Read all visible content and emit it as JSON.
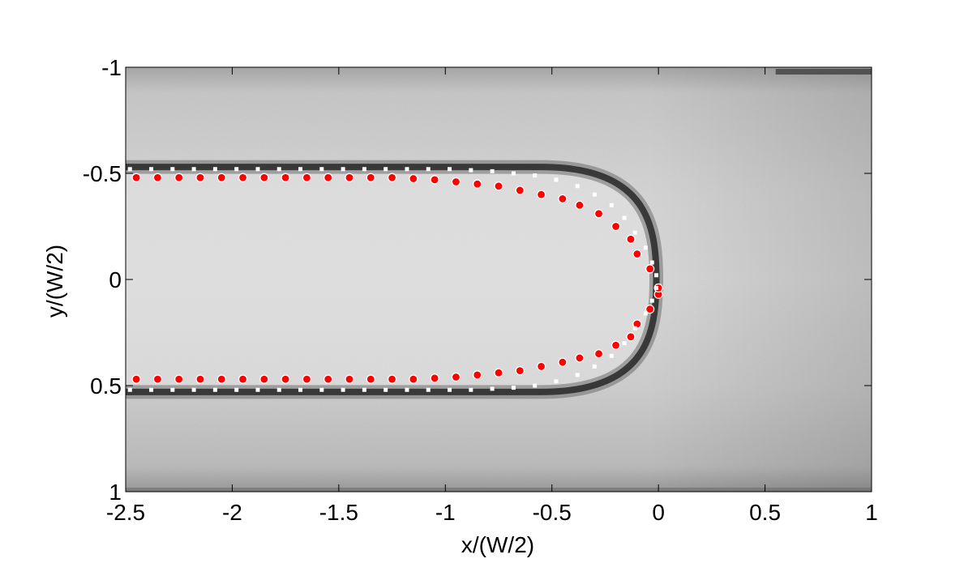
{
  "chart_data": {
    "type": "scatter",
    "title": "",
    "xlabel": "x/(W/2)",
    "ylabel": "y/(W/2)",
    "xlim": [
      -2.5,
      1
    ],
    "ylim": [
      -1,
      1
    ],
    "y_axis_direction": "reversed (-1 at top, 1 at bottom)",
    "x_ticks": [
      "-2.5",
      "-2",
      "-1.5",
      "-1",
      "-0.5",
      "0",
      "0.5",
      "1"
    ],
    "y_ticks": [
      "-1",
      "-0.5",
      "0",
      "0.5",
      "1"
    ],
    "background": "grayscale experimental image of an elongated bubble in a channel",
    "colors": {
      "red_series": "#ff0000",
      "white_series": "#ffffff"
    },
    "series": [
      {
        "color": "red",
        "marker": "circle",
        "points": [
          [
            -2.45,
            -0.48
          ],
          [
            -2.35,
            -0.48
          ],
          [
            -2.25,
            -0.48
          ],
          [
            -2.15,
            -0.48
          ],
          [
            -2.05,
            -0.48
          ],
          [
            -1.95,
            -0.48
          ],
          [
            -1.85,
            -0.48
          ],
          [
            -1.75,
            -0.48
          ],
          [
            -1.65,
            -0.48
          ],
          [
            -1.55,
            -0.48
          ],
          [
            -1.45,
            -0.48
          ],
          [
            -1.35,
            -0.48
          ],
          [
            -1.25,
            -0.48
          ],
          [
            -1.15,
            -0.475
          ],
          [
            -1.05,
            -0.47
          ],
          [
            -0.95,
            -0.46
          ],
          [
            -0.85,
            -0.45
          ],
          [
            -0.75,
            -0.44
          ],
          [
            -0.65,
            -0.42
          ],
          [
            -0.55,
            -0.4
          ],
          [
            -0.45,
            -0.38
          ],
          [
            -0.37,
            -0.35
          ],
          [
            -0.28,
            -0.31
          ],
          [
            -0.2,
            -0.25
          ],
          [
            -0.13,
            -0.19
          ],
          [
            -0.1,
            -0.12
          ],
          [
            -0.04,
            -0.05
          ],
          [
            0.0,
            0.07
          ],
          [
            0.0,
            0.04
          ],
          [
            -0.04,
            0.14
          ],
          [
            -0.1,
            0.21
          ],
          [
            -0.13,
            0.27
          ],
          [
            -0.2,
            0.31
          ],
          [
            -0.28,
            0.35
          ],
          [
            -0.37,
            0.37
          ],
          [
            -0.45,
            0.39
          ],
          [
            -0.55,
            0.41
          ],
          [
            -0.65,
            0.43
          ],
          [
            -0.75,
            0.44
          ],
          [
            -0.85,
            0.45
          ],
          [
            -0.95,
            0.46
          ],
          [
            -1.05,
            0.465
          ],
          [
            -1.15,
            0.47
          ],
          [
            -1.25,
            0.47
          ],
          [
            -1.35,
            0.47
          ],
          [
            -1.45,
            0.47
          ],
          [
            -1.55,
            0.47
          ],
          [
            -1.65,
            0.47
          ],
          [
            -1.75,
            0.47
          ],
          [
            -1.85,
            0.47
          ],
          [
            -1.95,
            0.47
          ],
          [
            -2.05,
            0.47
          ],
          [
            -2.15,
            0.47
          ],
          [
            -2.25,
            0.47
          ],
          [
            -2.35,
            0.47
          ],
          [
            -2.45,
            0.47
          ]
        ]
      },
      {
        "color": "white",
        "marker": "square",
        "points": [
          [
            -2.48,
            -0.52
          ],
          [
            -2.38,
            -0.52
          ],
          [
            -2.28,
            -0.52
          ],
          [
            -2.18,
            -0.52
          ],
          [
            -2.08,
            -0.52
          ],
          [
            -1.98,
            -0.52
          ],
          [
            -1.88,
            -0.52
          ],
          [
            -1.78,
            -0.52
          ],
          [
            -1.68,
            -0.52
          ],
          [
            -1.58,
            -0.52
          ],
          [
            -1.48,
            -0.52
          ],
          [
            -1.38,
            -0.52
          ],
          [
            -1.28,
            -0.52
          ],
          [
            -1.18,
            -0.52
          ],
          [
            -1.08,
            -0.52
          ],
          [
            -0.98,
            -0.52
          ],
          [
            -0.88,
            -0.515
          ],
          [
            -0.78,
            -0.51
          ],
          [
            -0.68,
            -0.5
          ],
          [
            -0.58,
            -0.49
          ],
          [
            -0.48,
            -0.47
          ],
          [
            -0.38,
            -0.44
          ],
          [
            -0.3,
            -0.4
          ],
          [
            -0.22,
            -0.35
          ],
          [
            -0.16,
            -0.29
          ],
          [
            -0.11,
            -0.22
          ],
          [
            -0.06,
            -0.15
          ],
          [
            -0.03,
            -0.08
          ],
          [
            -0.01,
            -0.02
          ],
          [
            -0.01,
            0.04
          ],
          [
            -0.03,
            0.1
          ],
          [
            -0.06,
            0.16
          ],
          [
            -0.11,
            0.23
          ],
          [
            -0.16,
            0.3
          ],
          [
            -0.22,
            0.36
          ],
          [
            -0.3,
            0.41
          ],
          [
            -0.38,
            0.45
          ],
          [
            -0.48,
            0.48
          ],
          [
            -0.58,
            0.5
          ],
          [
            -0.68,
            0.51
          ],
          [
            -0.78,
            0.515
          ],
          [
            -0.88,
            0.52
          ],
          [
            -0.98,
            0.52
          ],
          [
            -1.08,
            0.52
          ],
          [
            -1.18,
            0.52
          ],
          [
            -1.28,
            0.52
          ],
          [
            -1.38,
            0.52
          ],
          [
            -1.48,
            0.52
          ],
          [
            -1.58,
            0.52
          ],
          [
            -1.68,
            0.52
          ],
          [
            -1.78,
            0.52
          ],
          [
            -1.88,
            0.52
          ],
          [
            -1.98,
            0.52
          ],
          [
            -2.08,
            0.52
          ],
          [
            -2.18,
            0.52
          ],
          [
            -2.28,
            0.52
          ],
          [
            -2.38,
            0.52
          ],
          [
            -2.48,
            0.52
          ]
        ]
      }
    ]
  }
}
